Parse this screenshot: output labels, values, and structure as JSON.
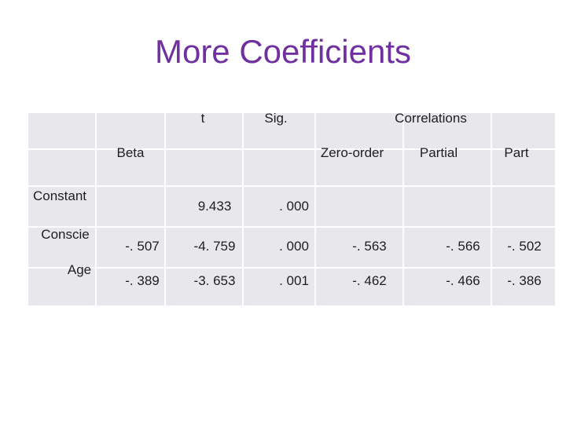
{
  "title": "More Coefficients",
  "table": {
    "header_top": {
      "t": "t",
      "sig": "Sig.",
      "correlations": "Correlations"
    },
    "header_sub": {
      "beta": "Beta",
      "zero_order": "Zero-order",
      "partial": "Partial",
      "part": "Part"
    },
    "rows": [
      {
        "label": "Constant",
        "t": "9.433",
        "sig": ". 000"
      },
      {
        "label": "Conscie",
        "beta": "-. 507",
        "t": "-4. 759",
        "sig": ". 000",
        "zero_order": "-. 563",
        "partial": "-. 566",
        "part": "-. 502"
      },
      {
        "label": "Age",
        "beta": "-. 389",
        "t": "-3. 653",
        "sig": ". 001",
        "zero_order": "-. 462",
        "partial": "-. 466",
        "part": "-. 386"
      }
    ]
  }
}
